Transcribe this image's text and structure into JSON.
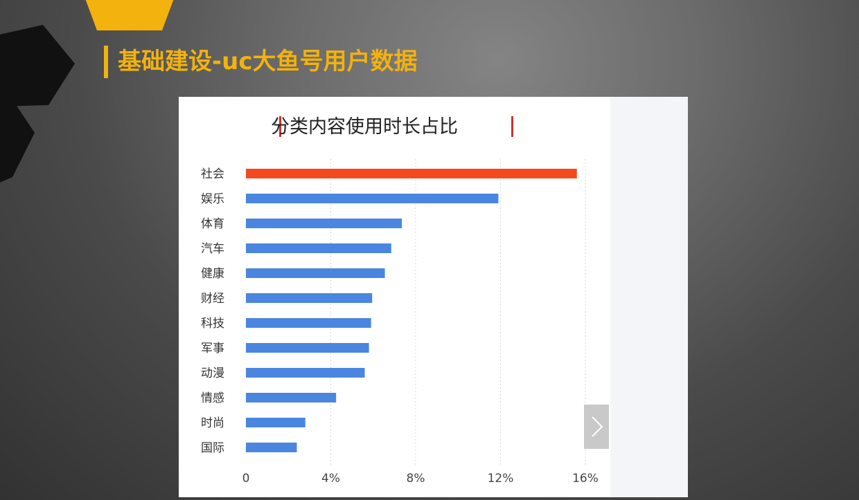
{
  "slide": {
    "title": "基础建设-uc大鱼号用户数据"
  },
  "colors": {
    "accent_yellow": "#f3b20d",
    "highlight_bar": "#f24a1e",
    "bar": "#4a86e0",
    "title_bracket": "#c9302c"
  },
  "chart_data": {
    "type": "bar",
    "orientation": "horizontal",
    "title": "分类内容使用时长占比",
    "categories": [
      "社会",
      "娱乐",
      "体育",
      "汽车",
      "健康",
      "财经",
      "科技",
      "军事",
      "动漫",
      "情感",
      "时尚",
      "国际"
    ],
    "values": [
      15.6,
      11.9,
      7.35,
      6.85,
      6.55,
      5.95,
      5.9,
      5.8,
      5.6,
      4.25,
      2.8,
      2.4
    ],
    "highlight_index": 0,
    "xlim": [
      0,
      16
    ],
    "x_ticks": [
      0,
      4,
      8,
      12,
      16
    ],
    "x_tick_labels": [
      "0",
      "4%",
      "8%",
      "12%",
      "16%"
    ],
    "grid": true
  },
  "controls": {
    "next_icon": "chevron-right-icon"
  }
}
